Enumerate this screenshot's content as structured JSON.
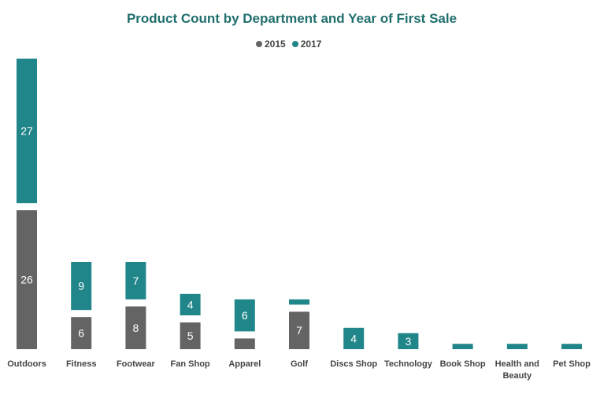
{
  "chart_data": {
    "type": "bar",
    "stacked": true,
    "title": "Product Count by Department and Year of First Sale",
    "categories": [
      "Outdoors",
      "Fitness",
      "Footwear",
      "Fan Shop",
      "Apparel",
      "Golf",
      "Discs Shop",
      "Technology",
      "Book Shop",
      "Health and Beauty",
      "Pet Shop"
    ],
    "series": [
      {
        "name": "2015",
        "values": [
          26,
          6,
          8,
          5,
          2,
          7,
          0,
          0,
          0,
          0,
          0
        ],
        "labels": [
          "26",
          "6",
          "8",
          "5",
          "",
          "7",
          "",
          "",
          "",
          "",
          ""
        ]
      },
      {
        "name": "2017",
        "values": [
          27,
          9,
          7,
          4,
          6,
          1,
          4,
          3,
          1,
          1,
          1
        ],
        "labels": [
          "27",
          "9",
          "7",
          "4",
          "6",
          "",
          "4",
          "3",
          "",
          "",
          ""
        ]
      }
    ],
    "colors": {
      "2015": "#646464",
      "2017": "#21868a"
    },
    "legend_position": "top-center",
    "grid": false,
    "xlabel": "",
    "ylabel": ""
  }
}
